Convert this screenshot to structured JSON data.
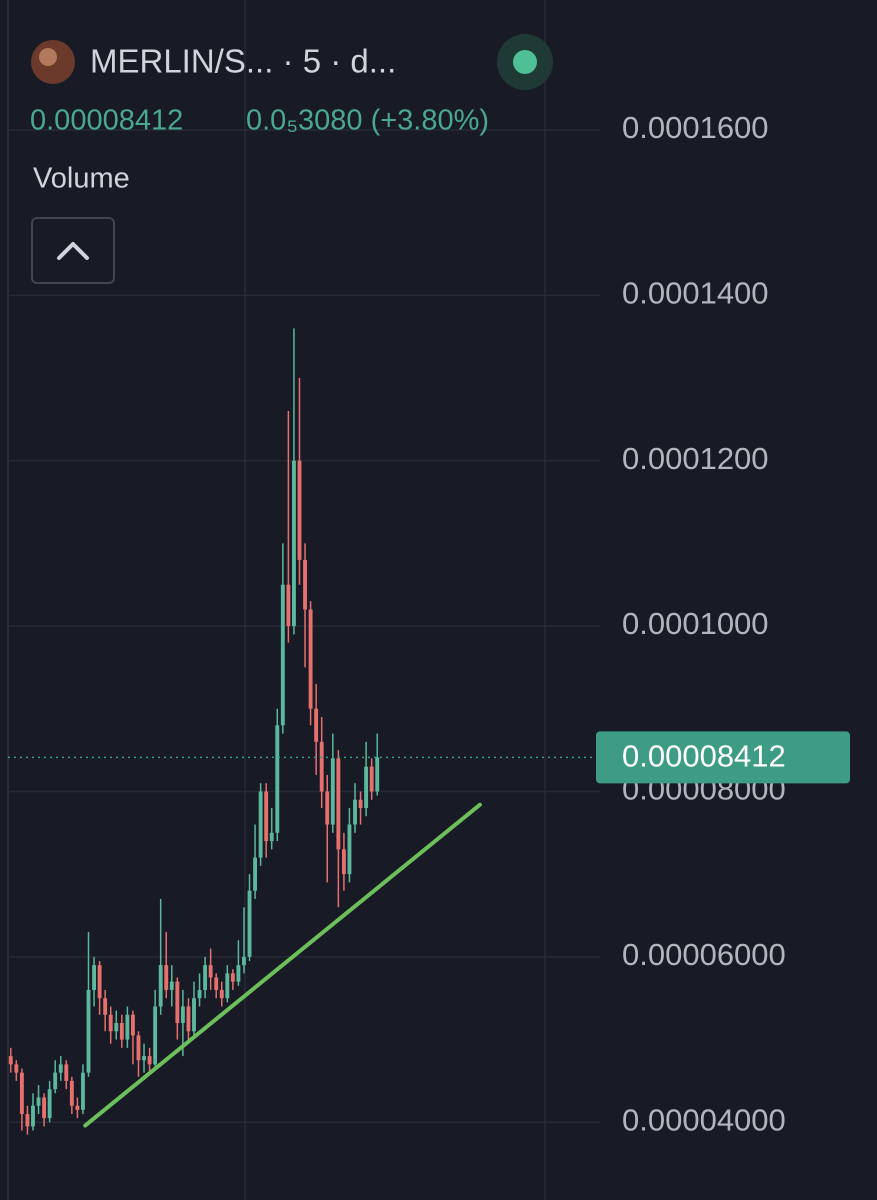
{
  "header": {
    "symbol": "MERLIN/S... · 5 · d...",
    "change": "0.0₅3080 (+3.80%)",
    "indicator": "Volume"
  },
  "chart_data": {
    "type": "candlestick",
    "up_color": "#5bb89c",
    "down_color": "#e5706e",
    "ylim": [
      3.06e-05,
      0.0001757
    ],
    "yticks": [
      {
        "value": 0.00016,
        "label": "0.0001600"
      },
      {
        "value": 0.00014,
        "label": "0.0001400"
      },
      {
        "value": 0.00012,
        "label": "0.0001200"
      },
      {
        "value": 0.0001,
        "label": "0.0001000"
      },
      {
        "value": 8e-05,
        "label": "0.00008000"
      },
      {
        "value": 6e-05,
        "label": "0.00006000"
      },
      {
        "value": 4e-05,
        "label": "0.00004000"
      }
    ],
    "grid": true,
    "last_price": {
      "value": 8.412e-05,
      "label": "0.00008412",
      "color": "#3f9c84"
    },
    "trendline": {
      "x": [
        13.4,
        84.5
      ],
      "y": [
        3.96e-05,
        7.84e-05
      ],
      "color": "#6cbf5a"
    },
    "open": [
      4.8e-05,
      4.7e-05,
      4.6e-05,
      4.1e-05,
      3.95e-05,
      4.2e-05,
      4.3e-05,
      4.05e-05,
      4.4e-05,
      4.6e-05,
      4.7e-05,
      4.5e-05,
      4.2e-05,
      4.15e-05,
      4.6e-05,
      5.6e-05,
      5.9e-05,
      5.5e-05,
      5.3e-05,
      5.1e-05,
      5.2e-05,
      5e-05,
      5.3e-05,
      5.05e-05,
      4.75e-05,
      4.8e-05,
      4.7e-05,
      5.4e-05,
      5.9e-05,
      5.6e-05,
      5.7e-05,
      5.2e-05,
      5.4e-05,
      5.1e-05,
      5.5e-05,
      5.6e-05,
      5.9e-05,
      5.75e-05,
      5.6e-05,
      5.5e-05,
      5.8e-05,
      5.7e-05,
      5.9e-05,
      6e-05,
      6.8e-05,
      7.2e-05,
      8e-05,
      7.4e-05,
      7.5e-05,
      8.8e-05,
      0.000105,
      0.0001,
      0.00012,
      0.000108,
      0.000102,
      9e-05,
      8.6e-05,
      8e-05,
      7.6e-05,
      8.4e-05,
      7.3e-05,
      7e-05,
      7.6e-05,
      7.9e-05,
      7.8e-05,
      8.3e-05,
      8e-05
    ],
    "high": [
      4.9e-05,
      4.75e-05,
      4.65e-05,
      4.2e-05,
      4.35e-05,
      4.45e-05,
      4.35e-05,
      4.5e-05,
      4.75e-05,
      4.8e-05,
      4.75e-05,
      4.55e-05,
      4.3e-05,
      4.7e-05,
      6.3e-05,
      6e-05,
      5.95e-05,
      5.6e-05,
      5.4e-05,
      5.35e-05,
      5.3e-05,
      5.4e-05,
      5.35e-05,
      5.1e-05,
      4.95e-05,
      4.9e-05,
      5.6e-05,
      6.7e-05,
      6.3e-05,
      5.9e-05,
      5.75e-05,
      5.6e-05,
      5.5e-05,
      5.7e-05,
      5.8e-05,
      6e-05,
      6.1e-05,
      5.8e-05,
      5.7e-05,
      5.9e-05,
      5.85e-05,
      6.2e-05,
      6.6e-05,
      7e-05,
      7.6e-05,
      8.1e-05,
      8.1e-05,
      7.8e-05,
      9e-05,
      0.00011,
      0.000126,
      0.000136,
      0.00013,
      0.00011,
      0.000103,
      9.3e-05,
      8.9e-05,
      8.2e-05,
      8.7e-05,
      8.5e-05,
      7.5e-05,
      7.8e-05,
      8.1e-05,
      8e-05,
      8.6e-05,
      8.4e-05,
      8.7e-05
    ],
    "low": [
      4.6e-05,
      4.5e-05,
      3.9e-05,
      3.85e-05,
      3.9e-05,
      4.1e-05,
      3.95e-05,
      4e-05,
      4.35e-05,
      4.5e-05,
      4.4e-05,
      4.1e-05,
      4.05e-05,
      4.1e-05,
      4.55e-05,
      5.4e-05,
      5.3e-05,
      5.1e-05,
      4.95e-05,
      5e-05,
      4.9e-05,
      4.9e-05,
      4.7e-05,
      4.55e-05,
      4.6e-05,
      4.6e-05,
      4.65e-05,
      5.3e-05,
      5.5e-05,
      5.4e-05,
      5e-05,
      4.8e-05,
      5e-05,
      5.05e-05,
      5.4e-05,
      5.5e-05,
      5.6e-05,
      5.5e-05,
      5.4e-05,
      5.45e-05,
      5.6e-05,
      5.65e-05,
      5.8e-05,
      5.95e-05,
      6.7e-05,
      7.1e-05,
      7.2e-05,
      7.3e-05,
      7.4e-05,
      8.7e-05,
      9.8e-05,
      9.9e-05,
      0.000105,
      9.5e-05,
      8.8e-05,
      8.2e-05,
      7.8e-05,
      6.9e-05,
      7.5e-05,
      6.6e-05,
      6.8e-05,
      6.9e-05,
      7.5e-05,
      7.6e-05,
      7.7e-05,
      7.9e-05,
      7.95e-05
    ],
    "close": [
      4.7e-05,
      4.6e-05,
      4.1e-05,
      3.95e-05,
      4.2e-05,
      4.3e-05,
      4.05e-05,
      4.4e-05,
      4.6e-05,
      4.7e-05,
      4.5e-05,
      4.2e-05,
      4.15e-05,
      4.6e-05,
      5.6e-05,
      5.9e-05,
      5.5e-05,
      5.3e-05,
      5.1e-05,
      5.2e-05,
      5e-05,
      5.3e-05,
      5.05e-05,
      4.75e-05,
      4.8e-05,
      4.7e-05,
      5.4e-05,
      5.9e-05,
      5.6e-05,
      5.7e-05,
      5.2e-05,
      5.4e-05,
      5.1e-05,
      5.5e-05,
      5.6e-05,
      5.9e-05,
      5.75e-05,
      5.6e-05,
      5.5e-05,
      5.8e-05,
      5.7e-05,
      5.9e-05,
      6e-05,
      6.8e-05,
      7.2e-05,
      8e-05,
      7.4e-05,
      7.5e-05,
      8.8e-05,
      0.000105,
      0.0001,
      0.00012,
      0.000108,
      0.000102,
      9e-05,
      8.6e-05,
      8e-05,
      7.6e-05,
      8.4e-05,
      7.3e-05,
      7e-05,
      7.6e-05,
      7.9e-05,
      7.8e-05,
      8.3e-05,
      8e-05,
      8.412e-05
    ]
  }
}
